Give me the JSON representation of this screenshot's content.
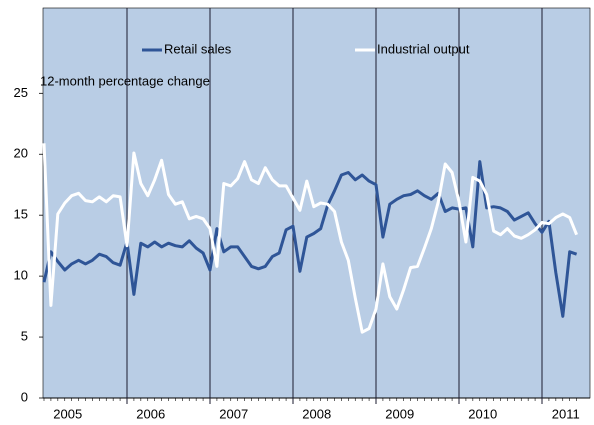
{
  "chart_data": {
    "type": "line",
    "y_label": "12-month percentage change",
    "categories": [
      null,
      null,
      null,
      "2005",
      null,
      null,
      null,
      null,
      null,
      null,
      null,
      null,
      null,
      null,
      null,
      "2006",
      null,
      null,
      null,
      null,
      null,
      null,
      null,
      null,
      null,
      null,
      null,
      "2007",
      null,
      null,
      null,
      null,
      null,
      null,
      null,
      null,
      null,
      null,
      null,
      "2008",
      null,
      null,
      null,
      null,
      null,
      null,
      null,
      null,
      null,
      null,
      null,
      "2009",
      null,
      null,
      null,
      null,
      null,
      null,
      null,
      null,
      null,
      null,
      null,
      "2010",
      null,
      null,
      null,
      null,
      null,
      null,
      null,
      null,
      null,
      null,
      null,
      "2011",
      null,
      null
    ],
    "series": [
      {
        "name": "Retail sales",
        "color": "#2f5597",
        "values": [
          9.5,
          12,
          11.2,
          10.5,
          11,
          11.3,
          11,
          11.3,
          11.8,
          11.6,
          11.1,
          10.9,
          12.8,
          8.5,
          12.7,
          12.4,
          12.8,
          12.4,
          12.7,
          12.5,
          12.4,
          12.9,
          12.3,
          11.9,
          10.5,
          13.9,
          12,
          12.4,
          12.4,
          11.6,
          10.8,
          10.6,
          10.8,
          11.6,
          11.9,
          13.8,
          14.1,
          10.4,
          13.2,
          13.5,
          13.9,
          15.8,
          17,
          18.3,
          18.5,
          17.9,
          18.3,
          17.8,
          17.5,
          13.2,
          15.9,
          16.3,
          16.6,
          16.7,
          17,
          16.6,
          16.3,
          16.8,
          15.3,
          15.6,
          15.5,
          15.6,
          12.4,
          19.4,
          15.6,
          15.7,
          15.6,
          15.3,
          14.6,
          14.9,
          15.2,
          14.3,
          13.6,
          14.5,
          10.3,
          6.7,
          12,
          11.8
        ]
      },
      {
        "name": "Industrial output",
        "color": "#ffffff",
        "values": [
          20.9,
          7.6,
          15.1,
          16,
          16.6,
          16.8,
          16.2,
          16.1,
          16.5,
          16.1,
          16.6,
          16.5,
          12.5,
          20.1,
          17.6,
          16.6,
          17.9,
          19.5,
          16.7,
          15.9,
          16.1,
          14.7,
          14.9,
          14.7,
          13.9,
          10.8,
          17.6,
          17.4,
          18,
          19.4,
          17.9,
          17.6,
          18.9,
          17.9,
          17.4,
          17.4,
          16.4,
          15.4,
          17.8,
          15.7,
          16,
          15.9,
          15.3,
          12.8,
          11.3,
          8.2,
          5.4,
          5.7,
          7.3,
          11,
          8.3,
          7.3,
          8.9,
          10.7,
          10.8,
          12.3,
          13.9,
          16.1,
          19.2,
          18.5,
          16.1,
          12.8,
          18.1,
          17.8,
          16.7,
          13.7,
          13.4,
          13.9,
          13.3,
          13.1,
          13.4,
          13.8,
          14.4,
          14.3,
          14.8,
          15.1,
          14.8,
          13.4
        ]
      }
    ],
    "ylim": [
      0,
      32
    ],
    "yticks": [
      0,
      5,
      10,
      15,
      20,
      25
    ],
    "background": "#b9cde5",
    "legend": "top"
  }
}
